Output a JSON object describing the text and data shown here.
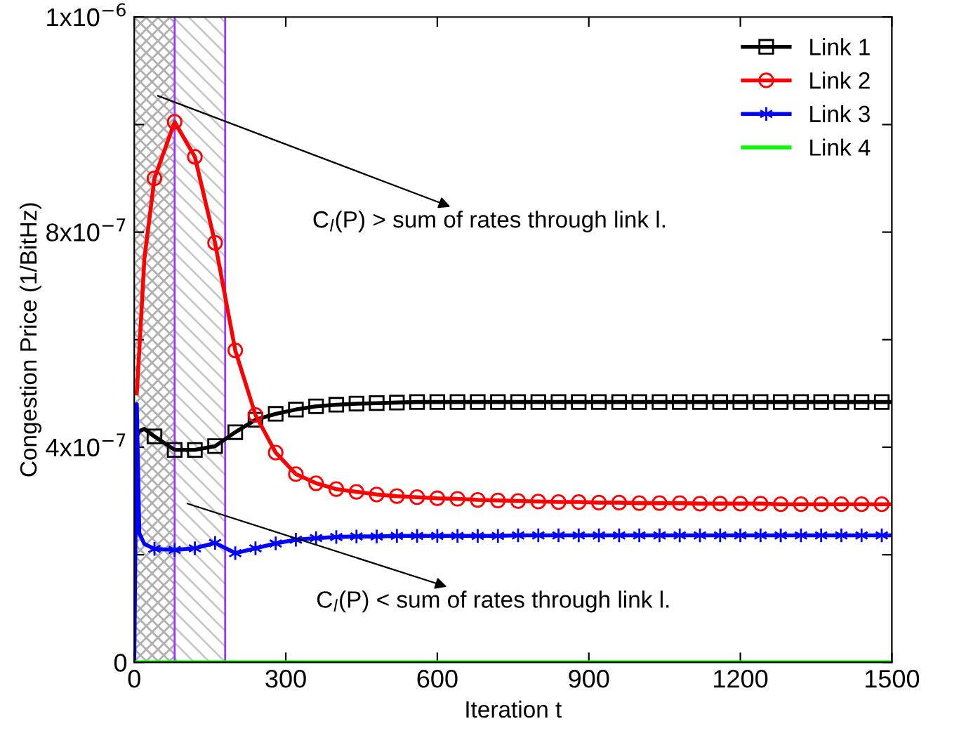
{
  "chart_data": {
    "type": "line",
    "xlabel": "Iteration t",
    "ylabel": "Congestion Price (1/BitHz)",
    "x": [
      0,
      5,
      10,
      20,
      40,
      80,
      120,
      160,
      200,
      240,
      280,
      320,
      360,
      400,
      440,
      480,
      520,
      560,
      600,
      640,
      680,
      720,
      760,
      800,
      840,
      880,
      920,
      960,
      1000,
      1040,
      1080,
      1120,
      1160,
      1200,
      1240,
      1280,
      1320,
      1360,
      1400,
      1440,
      1480,
      1500
    ],
    "series": [
      {
        "name": "Link 1",
        "color": "#000000",
        "marker": "square",
        "values": [
          4e-07,
          4.2e-07,
          4.3e-07,
          4.34e-07,
          4.2e-07,
          3.95e-07,
          3.95e-07,
          4.02e-07,
          4.28e-07,
          4.51e-07,
          4.62e-07,
          4.7e-07,
          4.76e-07,
          4.79e-07,
          4.81e-07,
          4.82e-07,
          4.83e-07,
          4.84e-07,
          4.84e-07,
          4.84e-07,
          4.84e-07,
          4.84e-07,
          4.84e-07,
          4.84e-07,
          4.84e-07,
          4.84e-07,
          4.84e-07,
          4.84e-07,
          4.84e-07,
          4.84e-07,
          4.84e-07,
          4.84e-07,
          4.84e-07,
          4.84e-07,
          4.84e-07,
          4.84e-07,
          4.84e-07,
          4.84e-07,
          4.84e-07,
          4.84e-07,
          4.84e-07,
          4.84e-07
        ]
      },
      {
        "name": "Link 2",
        "color": "#ff0000",
        "marker": "circle",
        "values": [
          null,
          5e-07,
          5.8e-07,
          7.5e-07,
          9e-07,
          1.005e-06,
          9.4e-07,
          7.8e-07,
          5.8e-07,
          4.6e-07,
          3.9e-07,
          3.5e-07,
          3.33e-07,
          3.22e-07,
          3.17e-07,
          3.12e-07,
          3.09e-07,
          3.07e-07,
          3.05e-07,
          3.04e-07,
          3.02e-07,
          3.01e-07,
          3e-07,
          2.99e-07,
          2.98e-07,
          2.98e-07,
          2.97e-07,
          2.97e-07,
          2.96e-07,
          2.96e-07,
          2.96e-07,
          2.95e-07,
          2.95e-07,
          2.95e-07,
          2.95e-07,
          2.94e-07,
          2.94e-07,
          2.94e-07,
          2.94e-07,
          2.94e-07,
          2.94e-07,
          2.94e-07
        ]
      },
      {
        "name": "Link 3",
        "color": "#0000ff",
        "marker": "cross",
        "values": [
          0,
          4.8e-07,
          2.4e-07,
          2.2e-07,
          2.11e-07,
          2.09e-07,
          2.12e-07,
          2.22e-07,
          2.03e-07,
          2.12e-07,
          2.21e-07,
          2.28e-07,
          2.31e-07,
          2.33e-07,
          2.34e-07,
          2.34e-07,
          2.35e-07,
          2.35e-07,
          2.35e-07,
          2.35e-07,
          2.35e-07,
          2.35e-07,
          2.36e-07,
          2.36e-07,
          2.36e-07,
          2.36e-07,
          2.36e-07,
          2.36e-07,
          2.36e-07,
          2.36e-07,
          2.36e-07,
          2.36e-07,
          2.36e-07,
          2.36e-07,
          2.36e-07,
          2.36e-07,
          2.36e-07,
          2.36e-07,
          2.36e-07,
          2.36e-07,
          2.36e-07,
          2.36e-07
        ]
      },
      {
        "name": "Link 4",
        "color": "#00ff00",
        "marker": "none",
        "values": [
          0,
          0,
          0,
          0,
          0,
          0,
          0,
          0,
          0,
          0,
          0,
          0,
          0,
          0,
          0,
          0,
          0,
          0,
          0,
          0,
          0,
          0,
          0,
          0,
          0,
          0,
          0,
          0,
          0,
          0,
          0,
          0,
          0,
          0,
          0,
          0,
          0,
          0,
          0,
          0,
          0,
          0
        ]
      }
    ],
    "xlim": [
      0,
      1500
    ],
    "xticks": [
      0,
      300,
      600,
      900,
      1200,
      1500
    ],
    "ylim": [
      0,
      1.2e-06
    ],
    "yticks": [
      {
        "value": 0,
        "label": "0"
      },
      {
        "value": 2e-07,
        "label": null
      },
      {
        "value": 4e-07,
        "label": "4x10$^{−7}$"
      },
      {
        "value": 6e-07,
        "label": null
      },
      {
        "value": 8e-07,
        "label": "8x10$^{−7}$"
      },
      {
        "value": 1e-06,
        "label": null
      },
      {
        "value": 1.2e-06,
        "label": "1x10$^{−6}$"
      }
    ],
    "bands": [
      {
        "axis": "x",
        "from": 0,
        "to": 80,
        "color": "#b0b0b0"
      },
      {
        "axis": "x",
        "from": 80,
        "to": 180,
        "color": "#c8c8c8"
      }
    ],
    "ref_lines": [
      {
        "axis": "x",
        "value": 80,
        "color": "#9933ff"
      },
      {
        "axis": "x",
        "value": 180,
        "color": "#9933ff"
      }
    ],
    "annotations": [
      "C$_{l}$(P) > sum of rates through link l.",
      "C$_{l}$(P) < sum of rates through link l."
    ],
    "legend": "top right",
    "grid": false,
    "line_style": "solid"
  }
}
